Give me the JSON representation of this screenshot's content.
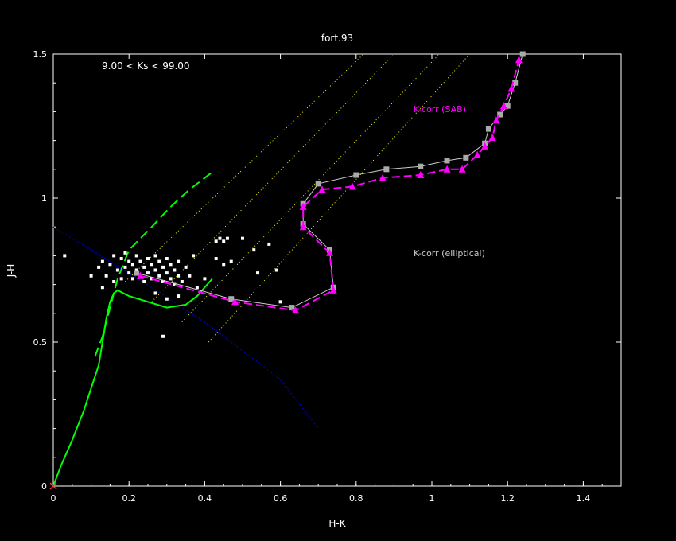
{
  "chart_data": {
    "type": "scatter",
    "title": "fort.93",
    "xlabel": "H-K",
    "ylabel": "J-H",
    "xlim": [
      0,
      1.5
    ],
    "ylim": [
      0,
      1.5
    ],
    "xticks": [
      "0",
      "0.2",
      "0.4",
      "0.6",
      "0.8",
      "1",
      "1.2",
      "1.4"
    ],
    "yticks": [
      "0",
      "0.5",
      "1",
      "1.5"
    ],
    "grid": false,
    "colors": {
      "background": "#000000",
      "axes": "#ffffff",
      "points": "#ffffff",
      "dwarf_locus": "#00ff00",
      "giant_locus": "#00ff00",
      "reddening_bands": "#ffff00",
      "reference_line": "#0000cc",
      "kcorr_elliptical": "#aaaaaa",
      "kcorr_sab": "#ff00ff",
      "origin_marker": "#ff3333"
    },
    "annotations": {
      "magnitude_range": "9.00 < Ks <  99.00",
      "kcorr_sab_label": "K-corr (SAB)",
      "kcorr_elliptical_label": "K-corr (elliptical)"
    },
    "series": [
      {
        "style": "green-solid",
        "points": [
          [
            0,
            0
          ],
          [
            0.02,
            0.07
          ],
          [
            0.05,
            0.16
          ],
          [
            0.08,
            0.26
          ],
          [
            0.1,
            0.34
          ],
          [
            0.12,
            0.42
          ],
          [
            0.13,
            0.5
          ],
          [
            0.14,
            0.58
          ],
          [
            0.15,
            0.64
          ],
          [
            0.16,
            0.67
          ],
          [
            0.17,
            0.68
          ],
          [
            0.2,
            0.66
          ],
          [
            0.25,
            0.64
          ],
          [
            0.3,
            0.62
          ],
          [
            0.35,
            0.63
          ],
          [
            0.38,
            0.66
          ],
          [
            0.42,
            0.72
          ]
        ]
      },
      {
        "style": "green-dashed",
        "points": [
          [
            0.11,
            0.45
          ],
          [
            0.13,
            0.52
          ],
          [
            0.15,
            0.62
          ],
          [
            0.17,
            0.72
          ],
          [
            0.2,
            0.82
          ],
          [
            0.26,
            0.9
          ],
          [
            0.31,
            0.97
          ],
          [
            0.36,
            1.03
          ],
          [
            0.42,
            1.09
          ]
        ]
      },
      {
        "style": "yellow-dotted",
        "lines": [
          [
            [
              0.19,
              0.71
            ],
            [
              0.82,
              1.5
            ]
          ],
          [
            [
              0.26,
              0.64
            ],
            [
              0.9,
              1.5
            ]
          ],
          [
            [
              0.34,
              0.57
            ],
            [
              1.02,
              1.5
            ]
          ],
          [
            [
              0.41,
              0.5
            ],
            [
              1.1,
              1.5
            ]
          ]
        ]
      },
      {
        "style": "blue-dotted",
        "points": [
          [
            0,
            0.9
          ],
          [
            0.2,
            0.74
          ],
          [
            0.4,
            0.57
          ],
          [
            0.6,
            0.37
          ],
          [
            0.7,
            0.2
          ]
        ]
      },
      {
        "name": "K-corr (elliptical)",
        "style": "gray-square",
        "points": [
          [
            0.22,
            0.74
          ],
          [
            0.47,
            0.65
          ],
          [
            0.63,
            0.62
          ],
          [
            0.74,
            0.69
          ],
          [
            0.73,
            0.82
          ],
          [
            0.66,
            0.91
          ],
          [
            0.66,
            0.98
          ],
          [
            0.7,
            1.05
          ],
          [
            0.8,
            1.08
          ],
          [
            0.88,
            1.1
          ],
          [
            0.97,
            1.11
          ],
          [
            1.04,
            1.13
          ],
          [
            1.09,
            1.14
          ],
          [
            1.14,
            1.19
          ],
          [
            1.15,
            1.24
          ],
          [
            1.18,
            1.29
          ],
          [
            1.2,
            1.32
          ],
          [
            1.22,
            1.4
          ],
          [
            1.24,
            1.5
          ]
        ]
      },
      {
        "name": "K-corr (SAB)",
        "style": "magenta-triangle",
        "points": [
          [
            0.23,
            0.73
          ],
          [
            0.48,
            0.64
          ],
          [
            0.64,
            0.61
          ],
          [
            0.74,
            0.68
          ],
          [
            0.73,
            0.81
          ],
          [
            0.66,
            0.9
          ],
          [
            0.66,
            0.97
          ],
          [
            0.71,
            1.03
          ],
          [
            0.79,
            1.04
          ],
          [
            0.87,
            1.07
          ],
          [
            0.97,
            1.08
          ],
          [
            1.04,
            1.1
          ],
          [
            1.08,
            1.1
          ],
          [
            1.12,
            1.15
          ],
          [
            1.14,
            1.18
          ],
          [
            1.16,
            1.21
          ],
          [
            1.17,
            1.27
          ],
          [
            1.19,
            1.32
          ],
          [
            1.21,
            1.38
          ],
          [
            1.23,
            1.48
          ]
        ]
      },
      {
        "style": "white-dots",
        "points": [
          [
            0.03,
            0.8
          ],
          [
            0.1,
            0.73
          ],
          [
            0.12,
            0.76
          ],
          [
            0.13,
            0.69
          ],
          [
            0.13,
            0.78
          ],
          [
            0.14,
            0.73
          ],
          [
            0.15,
            0.77
          ],
          [
            0.16,
            0.8
          ],
          [
            0.16,
            0.71
          ],
          [
            0.17,
            0.75
          ],
          [
            0.18,
            0.72
          ],
          [
            0.18,
            0.79
          ],
          [
            0.19,
            0.81
          ],
          [
            0.19,
            0.76
          ],
          [
            0.2,
            0.74
          ],
          [
            0.2,
            0.78
          ],
          [
            0.21,
            0.72
          ],
          [
            0.21,
            0.77
          ],
          [
            0.22,
            0.75
          ],
          [
            0.22,
            0.8
          ],
          [
            0.23,
            0.73
          ],
          [
            0.23,
            0.78
          ],
          [
            0.24,
            0.76
          ],
          [
            0.24,
            0.71
          ],
          [
            0.25,
            0.79
          ],
          [
            0.25,
            0.74
          ],
          [
            0.26,
            0.77
          ],
          [
            0.26,
            0.72
          ],
          [
            0.27,
            0.75
          ],
          [
            0.27,
            0.8
          ],
          [
            0.28,
            0.73
          ],
          [
            0.28,
            0.78
          ],
          [
            0.29,
            0.76
          ],
          [
            0.29,
            0.71
          ],
          [
            0.3,
            0.74
          ],
          [
            0.3,
            0.79
          ],
          [
            0.31,
            0.72
          ],
          [
            0.31,
            0.77
          ],
          [
            0.32,
            0.75
          ],
          [
            0.32,
            0.7
          ],
          [
            0.33,
            0.73
          ],
          [
            0.33,
            0.78
          ],
          [
            0.34,
            0.71
          ],
          [
            0.35,
            0.76
          ],
          [
            0.36,
            0.73
          ],
          [
            0.37,
            0.8
          ],
          [
            0.38,
            0.69
          ],
          [
            0.4,
            0.72
          ],
          [
            0.29,
            0.52
          ],
          [
            0.43,
            0.85
          ],
          [
            0.44,
            0.86
          ],
          [
            0.45,
            0.85
          ],
          [
            0.46,
            0.86
          ],
          [
            0.43,
            0.79
          ],
          [
            0.45,
            0.77
          ],
          [
            0.47,
            0.78
          ],
          [
            0.5,
            0.86
          ],
          [
            0.53,
            0.82
          ],
          [
            0.54,
            0.74
          ],
          [
            0.57,
            0.84
          ],
          [
            0.59,
            0.75
          ],
          [
            0.6,
            0.64
          ],
          [
            0.3,
            0.65
          ],
          [
            0.27,
            0.67
          ],
          [
            0.33,
            0.66
          ]
        ]
      }
    ]
  }
}
